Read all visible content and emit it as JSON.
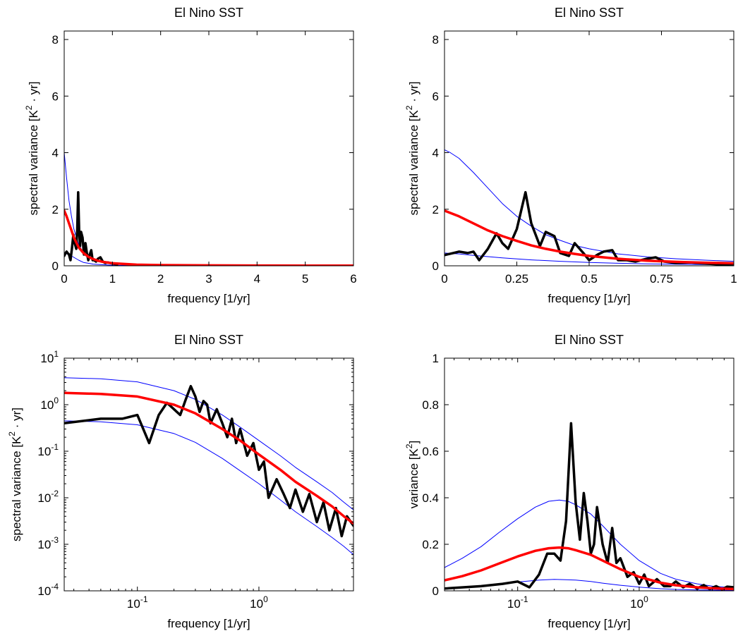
{
  "chart_data": [
    {
      "type": "line",
      "title": "El Nino SST",
      "xlabel": "frequency [1/yr]",
      "ylabel_parts": [
        "spectral variance [K",
        "2",
        " · yr]"
      ],
      "xscale": "linear",
      "yscale": "linear",
      "xlim": [
        0,
        6
      ],
      "ylim": [
        0,
        8.3
      ],
      "xticks": [
        0,
        1,
        2,
        3,
        4,
        5,
        6
      ],
      "xtick_labels": [
        "0",
        "1",
        "2",
        "3",
        "4",
        "5",
        "6"
      ],
      "yticks": [
        0,
        2,
        4,
        6,
        8
      ],
      "ytick_labels": [
        "0",
        "2",
        "4",
        "6",
        "8"
      ],
      "grid": false,
      "series": [
        {
          "color": "#0000ff",
          "width": 1,
          "x": [
            0,
            0.05,
            0.1,
            0.15,
            0.2,
            0.3,
            0.4,
            0.5,
            0.7,
            1.0,
            1.5,
            2,
            3,
            4,
            5,
            6
          ],
          "y": [
            4.0,
            3.1,
            2.3,
            1.75,
            1.3,
            0.75,
            0.45,
            0.3,
            0.15,
            0.08,
            0.045,
            0.03,
            0.02,
            0.015,
            0.012,
            0.01
          ]
        },
        {
          "color": "#0000ff",
          "width": 1,
          "x": [
            0,
            0.1,
            0.2,
            0.3,
            0.4,
            0.6,
            1.0,
            2,
            4,
            6
          ],
          "y": [
            0.45,
            0.4,
            0.3,
            0.2,
            0.12,
            0.06,
            0.02,
            0.005,
            0.002,
            0.001
          ]
        },
        {
          "color": "#000000",
          "width": 3.5,
          "x": [
            0,
            0.03,
            0.05,
            0.07,
            0.1,
            0.13,
            0.16,
            0.19,
            0.22,
            0.25,
            0.27,
            0.29,
            0.31,
            0.33,
            0.35,
            0.38,
            0.41,
            0.44,
            0.47,
            0.5,
            0.53,
            0.56,
            0.59,
            0.62,
            0.66,
            0.7,
            0.75,
            0.8,
            0.85,
            0.9,
            1.0,
            1.1
          ],
          "y": [
            0.35,
            0.45,
            0.5,
            0.45,
            0.4,
            0.2,
            0.6,
            1.1,
            0.8,
            0.6,
            1.3,
            2.6,
            1.2,
            0.7,
            1.2,
            1.0,
            0.4,
            0.8,
            0.45,
            0.2,
            0.4,
            0.55,
            0.2,
            0.2,
            0.15,
            0.25,
            0.3,
            0.15,
            0.1,
            0.12,
            0.08,
            0.05
          ]
        },
        {
          "color": "#ff0000",
          "width": 3.5,
          "x": [
            0,
            0.05,
            0.1,
            0.15,
            0.2,
            0.3,
            0.4,
            0.5,
            0.6,
            0.7,
            0.8,
            1.0,
            1.5,
            2,
            3,
            4,
            5,
            6
          ],
          "y": [
            1.95,
            1.75,
            1.5,
            1.25,
            1.0,
            0.65,
            0.45,
            0.32,
            0.24,
            0.18,
            0.14,
            0.09,
            0.04,
            0.025,
            0.015,
            0.01,
            0.008,
            0.006
          ]
        }
      ]
    },
    {
      "type": "line",
      "title": "El Nino SST",
      "xlabel": "frequency [1/yr]",
      "ylabel_parts": [
        "spectral variance [K",
        "2",
        " · yr]"
      ],
      "xscale": "linear",
      "yscale": "linear",
      "xlim": [
        0,
        1
      ],
      "ylim": [
        0,
        8.3
      ],
      "xticks": [
        0,
        0.25,
        0.5,
        0.75,
        1
      ],
      "xtick_labels": [
        "0",
        "0.25",
        "0.5",
        "0.75",
        "1"
      ],
      "yticks": [
        0,
        2,
        4,
        6,
        8
      ],
      "ytick_labels": [
        "0",
        "2",
        "4",
        "6",
        "8"
      ],
      "grid": false,
      "series": [
        {
          "color": "#0000ff",
          "width": 1,
          "x": [
            0,
            0.02,
            0.05,
            0.1,
            0.15,
            0.2,
            0.25,
            0.3,
            0.35,
            0.4,
            0.45,
            0.5,
            0.6,
            0.7,
            0.8,
            0.9,
            1.0
          ],
          "y": [
            4.1,
            4.0,
            3.8,
            3.3,
            2.75,
            2.2,
            1.75,
            1.4,
            1.1,
            0.9,
            0.72,
            0.6,
            0.42,
            0.32,
            0.25,
            0.2,
            0.16
          ]
        },
        {
          "color": "#0000ff",
          "width": 1,
          "x": [
            0,
            0.05,
            0.1,
            0.2,
            0.3,
            0.4,
            0.5,
            0.6,
            0.7,
            0.8,
            0.9,
            1.0
          ],
          "y": [
            0.45,
            0.42,
            0.37,
            0.28,
            0.21,
            0.16,
            0.12,
            0.09,
            0.07,
            0.055,
            0.045,
            0.035
          ]
        },
        {
          "color": "#000000",
          "width": 3.5,
          "x": [
            0,
            0.03,
            0.05,
            0.08,
            0.1,
            0.12,
            0.15,
            0.18,
            0.2,
            0.22,
            0.25,
            0.28,
            0.3,
            0.33,
            0.35,
            0.38,
            0.4,
            0.43,
            0.45,
            0.48,
            0.5,
            0.53,
            0.55,
            0.58,
            0.6,
            0.63,
            0.66,
            0.7,
            0.73,
            0.76,
            0.8,
            0.85,
            0.9,
            0.95,
            1.0
          ],
          "y": [
            0.38,
            0.45,
            0.5,
            0.45,
            0.5,
            0.2,
            0.6,
            1.15,
            0.8,
            0.6,
            1.3,
            2.6,
            1.5,
            0.7,
            1.2,
            1.05,
            0.45,
            0.35,
            0.8,
            0.45,
            0.2,
            0.4,
            0.5,
            0.55,
            0.2,
            0.2,
            0.15,
            0.25,
            0.3,
            0.15,
            0.1,
            0.12,
            0.08,
            0.05,
            0.06
          ]
        },
        {
          "color": "#ff0000",
          "width": 3.5,
          "x": [
            0,
            0.05,
            0.1,
            0.15,
            0.2,
            0.25,
            0.3,
            0.35,
            0.4,
            0.45,
            0.5,
            0.6,
            0.7,
            0.8,
            0.9,
            1.0
          ],
          "y": [
            1.95,
            1.75,
            1.5,
            1.25,
            1.05,
            0.88,
            0.72,
            0.6,
            0.5,
            0.42,
            0.35,
            0.25,
            0.18,
            0.14,
            0.11,
            0.09
          ]
        }
      ]
    },
    {
      "type": "line",
      "title": "El Nino SST",
      "xlabel": "frequency [1/yr]",
      "ylabel_parts": [
        "spectral variance [K",
        "2",
        " · yr]"
      ],
      "xscale": "log",
      "yscale": "log",
      "xlim": [
        0.025,
        6
      ],
      "ylim": [
        0.0001,
        10
      ],
      "xticks": [
        0.1,
        1
      ],
      "xtick_labels": [
        [
          "10",
          "-1"
        ],
        [
          "10",
          "0"
        ]
      ],
      "yticks": [
        0.0001,
        0.001,
        0.01,
        0.1,
        1,
        10
      ],
      "ytick_labels": [
        [
          "10",
          "-4"
        ],
        [
          "10",
          "-3"
        ],
        [
          "10",
          "-2"
        ],
        [
          "10",
          "-1"
        ],
        [
          "10",
          "0"
        ],
        [
          "10",
          "1"
        ]
      ],
      "grid": false,
      "series": [
        {
          "color": "#0000ff",
          "width": 1,
          "x": [
            0.025,
            0.05,
            0.1,
            0.2,
            0.3,
            0.5,
            0.7,
            1,
            1.5,
            2,
            3,
            4,
            5,
            6
          ],
          "y": [
            3.8,
            3.6,
            3.1,
            2.0,
            1.3,
            0.6,
            0.33,
            0.17,
            0.08,
            0.045,
            0.022,
            0.013,
            0.008,
            0.0055
          ]
        },
        {
          "color": "#0000ff",
          "width": 1,
          "x": [
            0.025,
            0.05,
            0.1,
            0.2,
            0.3,
            0.5,
            0.7,
            1,
            1.5,
            2,
            3,
            4,
            5,
            6
          ],
          "y": [
            0.45,
            0.43,
            0.37,
            0.24,
            0.155,
            0.07,
            0.038,
            0.02,
            0.009,
            0.005,
            0.0024,
            0.0014,
            0.0009,
            0.0006
          ]
        },
        {
          "color": "#000000",
          "width": 3.5,
          "x": [
            0.025,
            0.05,
            0.075,
            0.1,
            0.125,
            0.15,
            0.175,
            0.2,
            0.225,
            0.25,
            0.275,
            0.3,
            0.325,
            0.35,
            0.375,
            0.4,
            0.45,
            0.5,
            0.55,
            0.6,
            0.65,
            0.7,
            0.8,
            0.9,
            1.0,
            1.1,
            1.2,
            1.4,
            1.6,
            1.8,
            2.0,
            2.3,
            2.6,
            3.0,
            3.4,
            3.8,
            4.3,
            4.8,
            5.3,
            6.0
          ],
          "y": [
            0.4,
            0.5,
            0.5,
            0.6,
            0.15,
            0.6,
            1.1,
            0.8,
            0.6,
            1.3,
            2.5,
            1.5,
            0.7,
            1.2,
            1.0,
            0.4,
            0.8,
            0.4,
            0.2,
            0.5,
            0.15,
            0.3,
            0.08,
            0.15,
            0.04,
            0.06,
            0.01,
            0.025,
            0.012,
            0.006,
            0.015,
            0.005,
            0.012,
            0.003,
            0.008,
            0.002,
            0.006,
            0.0015,
            0.004,
            0.0025
          ]
        },
        {
          "color": "#ff0000",
          "width": 3.5,
          "x": [
            0.025,
            0.05,
            0.1,
            0.2,
            0.3,
            0.5,
            0.7,
            1,
            1.5,
            2,
            3,
            4,
            5,
            6
          ],
          "y": [
            1.8,
            1.7,
            1.5,
            1.0,
            0.65,
            0.3,
            0.17,
            0.085,
            0.04,
            0.022,
            0.011,
            0.0065,
            0.004,
            0.0028
          ]
        }
      ]
    },
    {
      "type": "line",
      "title": "El Nino SST",
      "xlabel": "frequency [1/yr]",
      "ylabel_parts": [
        "variance [K",
        "2",
        "]"
      ],
      "xscale": "log",
      "yscale": "linear",
      "xlim": [
        0.025,
        6
      ],
      "ylim": [
        0,
        1
      ],
      "xticks": [
        0.1,
        1
      ],
      "xtick_labels": [
        [
          "10",
          "-1"
        ],
        [
          "10",
          "0"
        ]
      ],
      "yticks": [
        0,
        0.2,
        0.4,
        0.6,
        0.8,
        1
      ],
      "ytick_labels": [
        "0",
        "0.2",
        "0.4",
        "0.6",
        "0.8",
        "1"
      ],
      "grid": false,
      "series": [
        {
          "color": "#0000ff",
          "width": 1,
          "x": [
            0.025,
            0.035,
            0.05,
            0.07,
            0.1,
            0.14,
            0.18,
            0.22,
            0.26,
            0.3,
            0.4,
            0.5,
            0.7,
            1,
            1.5,
            2,
            3,
            4,
            5,
            6
          ],
          "y": [
            0.1,
            0.14,
            0.19,
            0.25,
            0.31,
            0.36,
            0.385,
            0.39,
            0.385,
            0.37,
            0.33,
            0.28,
            0.2,
            0.13,
            0.075,
            0.05,
            0.03,
            0.02,
            0.016,
            0.013
          ]
        },
        {
          "color": "#0000ff",
          "width": 1,
          "x": [
            0.025,
            0.05,
            0.1,
            0.15,
            0.2,
            0.25,
            0.3,
            0.4,
            0.5,
            0.7,
            1,
            1.5,
            2,
            3,
            6
          ],
          "y": [
            0.012,
            0.022,
            0.038,
            0.046,
            0.049,
            0.048,
            0.046,
            0.04,
            0.033,
            0.024,
            0.016,
            0.009,
            0.006,
            0.004,
            0.002
          ]
        },
        {
          "color": "#000000",
          "width": 3.5,
          "x": [
            0.025,
            0.05,
            0.075,
            0.1,
            0.125,
            0.15,
            0.175,
            0.2,
            0.225,
            0.25,
            0.275,
            0.3,
            0.325,
            0.35,
            0.375,
            0.4,
            0.425,
            0.45,
            0.5,
            0.55,
            0.6,
            0.65,
            0.7,
            0.8,
            0.9,
            1.0,
            1.1,
            1.2,
            1.4,
            1.6,
            1.8,
            2.0,
            2.3,
            2.6,
            3.0,
            3.4,
            3.8,
            4.3,
            4.8,
            5.3,
            6.0
          ],
          "y": [
            0.01,
            0.02,
            0.03,
            0.04,
            0.015,
            0.07,
            0.16,
            0.16,
            0.13,
            0.3,
            0.72,
            0.38,
            0.22,
            0.42,
            0.3,
            0.16,
            0.2,
            0.36,
            0.2,
            0.12,
            0.27,
            0.12,
            0.14,
            0.06,
            0.08,
            0.03,
            0.07,
            0.02,
            0.05,
            0.02,
            0.02,
            0.04,
            0.015,
            0.03,
            0.01,
            0.025,
            0.008,
            0.02,
            0.006,
            0.018,
            0.015
          ]
        },
        {
          "color": "#ff0000",
          "width": 3.5,
          "x": [
            0.025,
            0.035,
            0.05,
            0.07,
            0.1,
            0.14,
            0.18,
            0.22,
            0.26,
            0.3,
            0.4,
            0.5,
            0.7,
            1,
            1.5,
            2,
            3,
            4,
            5,
            6
          ],
          "y": [
            0.045,
            0.063,
            0.088,
            0.117,
            0.148,
            0.172,
            0.183,
            0.186,
            0.183,
            0.175,
            0.155,
            0.13,
            0.093,
            0.06,
            0.035,
            0.024,
            0.015,
            0.011,
            0.009,
            0.008
          ]
        }
      ]
    }
  ]
}
